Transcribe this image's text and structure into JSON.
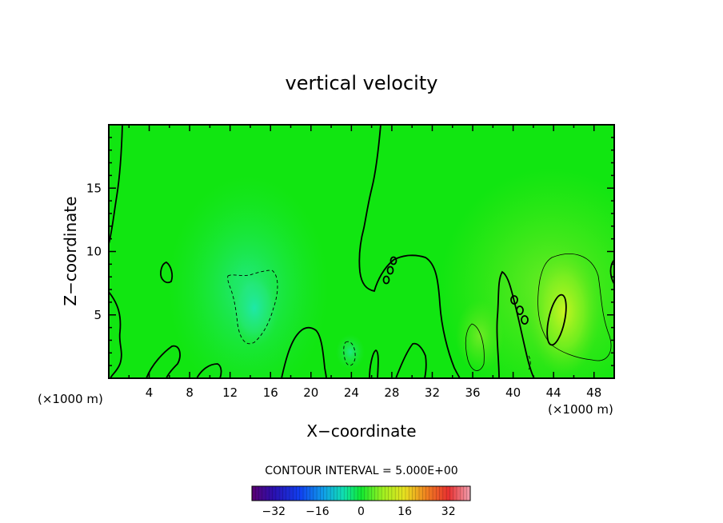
{
  "chart_data": {
    "type": "heatmap",
    "title": "vertical velocity",
    "xlabel": "X−coordinate",
    "ylabel": "Z−coordinate",
    "x_unit": "(×1000 m)",
    "z_unit": "(×1000 m)",
    "xlim": [
      0,
      50
    ],
    "ylim": [
      0,
      20
    ],
    "xticks": [
      4,
      8,
      12,
      16,
      20,
      24,
      28,
      32,
      36,
      40,
      44,
      48
    ],
    "yticks": [
      5,
      10,
      15
    ],
    "contour_interval_text": "CONTOUR INTERVAL = 5.000E+00",
    "colorbar": {
      "range": [
        -40,
        40
      ],
      "ticks": [
        -32,
        -16,
        0,
        16,
        32
      ],
      "tick_labels": [
        "−32",
        "−16",
        "0",
        "16",
        "32"
      ]
    },
    "features": [
      {
        "kind": "updraft",
        "x": 45,
        "z": 5.5,
        "peak": 10
      },
      {
        "kind": "updraft",
        "x": 43.5,
        "z": 7,
        "peak": 5
      },
      {
        "kind": "downdraft",
        "x": 14.5,
        "z": 5.5,
        "peak": -5
      },
      {
        "kind": "downdraft",
        "x": 24,
        "z": 2,
        "peak": -3
      }
    ]
  },
  "colors": {
    "field_zero": "#11e611",
    "positive": "#b5f51a",
    "negative": "#22e8a0"
  }
}
